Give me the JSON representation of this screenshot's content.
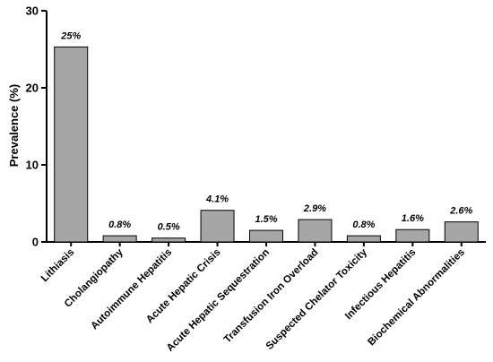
{
  "chart_data": {
    "type": "bar",
    "title": "",
    "xlabel": "",
    "ylabel": "Prevalence (%)",
    "ylim": [
      0,
      30
    ],
    "yticks": [
      0,
      10,
      20,
      30
    ],
    "grid": false,
    "bar_color": "#a6a6a6",
    "categories": [
      "Lithiasis",
      "Cholangiopathy",
      "Autoimmune Hepatitis",
      "Acute Hepatic Crisis",
      "Acute Hepatic Sequestration",
      "Transfusion Iron Overload",
      "Suspected Chelator Toxicity",
      "Infectious Hepatitis",
      "Biochemical Abnormalities"
    ],
    "values": [
      25.3,
      0.8,
      0.5,
      4.1,
      1.5,
      2.9,
      0.8,
      1.6,
      2.6
    ],
    "data_labels": [
      "25%",
      "0.8%",
      "0.5%",
      "4.1%",
      "1.5%",
      "2.9%",
      "0.8%",
      "1.6%",
      "2.6%"
    ]
  }
}
